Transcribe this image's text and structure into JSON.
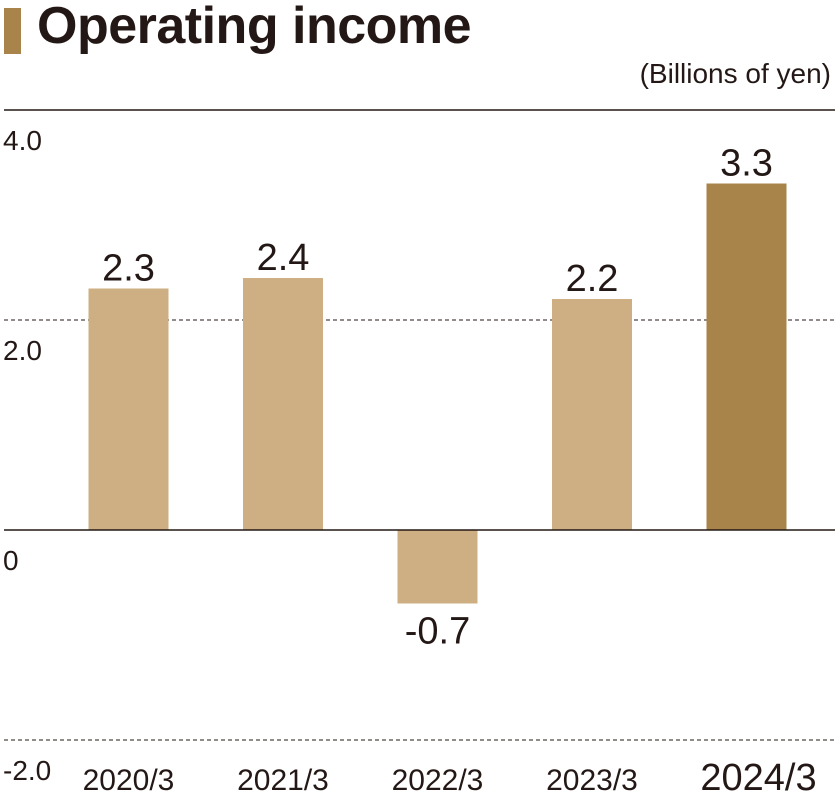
{
  "header": {
    "title": "Operating income",
    "unit": "(Billions of yen)"
  },
  "colors": {
    "accent": "#A8844A",
    "bar": "#CDAF83",
    "bar_highlight": "#A8844A",
    "text": "#231815"
  },
  "chart_data": {
    "type": "bar",
    "title": "Operating income",
    "ylabel": "(Billions of yen)",
    "categories": [
      "2020/3",
      "2021/3",
      "2022/3",
      "2023/3",
      "2024/3"
    ],
    "values": [
      2.3,
      2.4,
      -0.7,
      2.2,
      3.3
    ],
    "value_labels": [
      "2.3",
      "2.4",
      "-0.7",
      "2.2",
      "3.3"
    ],
    "highlight_category": "2024/3",
    "ylim": [
      -2.0,
      4.0
    ],
    "yticks": [
      4.0,
      2.0,
      0,
      -2.0
    ],
    "ytick_labels": [
      "4.0",
      "2.0",
      "0",
      "-2.0"
    ],
    "grid": "dashed at 2.0 and -2.0",
    "legend": "none"
  }
}
